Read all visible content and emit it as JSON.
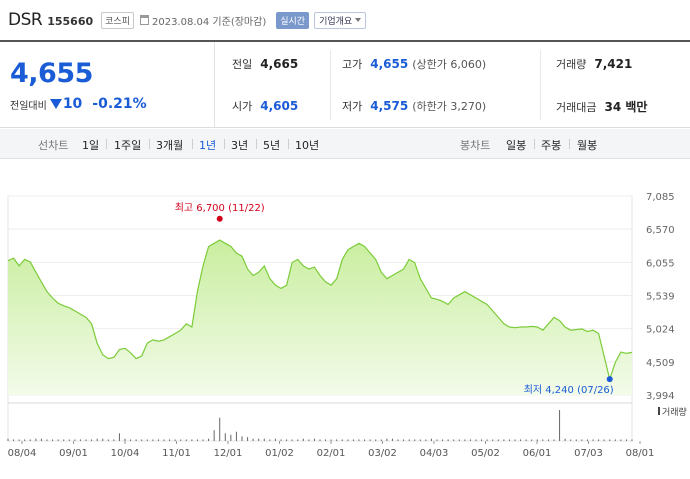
{
  "header": {
    "name": "DSR",
    "code": "155660",
    "market": "코스피",
    "date": "2023.08.04 기준(장마감)",
    "live": "실시간",
    "company": "기업개요",
    "icons": {
      "calendar": "calendar-icon",
      "dropdown": "chevron-down-icon"
    }
  },
  "quote": {
    "price": "4,655",
    "change_label": "전일대비",
    "change_value": "10",
    "change_pct": "-0.21%",
    "direction": "down",
    "prev_label": "전일",
    "prev_value": "4,665",
    "high_label": "고가",
    "high_value": "4,655",
    "upper_limit": "(상한가 6,060)",
    "volume_label": "거래량",
    "volume_value": "7,421",
    "open_label": "시가",
    "open_value": "4,605",
    "low_label": "저가",
    "low_value": "4,575",
    "lower_limit": "(하한가 3,270)",
    "amount_label": "거래대금",
    "amount_value": "34 백만"
  },
  "periods": {
    "line_label": "선차트",
    "line_items": [
      "1일",
      "1주일",
      "3개월",
      "1년",
      "3년",
      "5년",
      "10년"
    ],
    "active": "1년",
    "candle_label": "봉차트",
    "candle_items": [
      "일봉",
      "주봉",
      "월봉"
    ]
  },
  "colors": {
    "down": "#1a5bd6",
    "up": "#d0021b",
    "line": "#7ccc3a",
    "area": "#dff3c8"
  },
  "chart_data": {
    "type": "area",
    "y_ticks": [
      "7,085",
      "6,570",
      "6,055",
      "5,539",
      "5,024",
      "4,509",
      "3,994"
    ],
    "ylim": [
      3994,
      7085
    ],
    "x_ticks": [
      "08/04",
      "09/01",
      "10/04",
      "11/01",
      "12/01",
      "01/02",
      "02/01",
      "03/02",
      "04/03",
      "05/02",
      "06/01",
      "07/03",
      "08/01"
    ],
    "max_label": "최고 6,700 (11/22)",
    "max_value": 6700,
    "min_label": "최저 4,240 (07/26)",
    "min_value": 4240,
    "volume_label": "거래량",
    "series": [
      {
        "values": [
          6080,
          6120,
          6000,
          6100,
          6060,
          5900,
          5750,
          5600,
          5500,
          5420,
          5380,
          5350,
          5300,
          5250,
          5200,
          5100,
          4800,
          4620,
          4560,
          4580,
          4700,
          4720,
          4650,
          4560,
          4600,
          4800,
          4850,
          4830,
          4850,
          4900,
          4950,
          5000,
          5100,
          5050,
          5600,
          6000,
          6300,
          6350,
          6400,
          6350,
          6300,
          6200,
          6150,
          5950,
          5850,
          5900,
          6000,
          5800,
          5700,
          5650,
          5700,
          6050,
          6100,
          6000,
          5950,
          5980,
          5850,
          5750,
          5700,
          5800,
          6100,
          6250,
          6300,
          6350,
          6300,
          6200,
          6100,
          5900,
          5800,
          5850,
          5900,
          5950,
          6100,
          6050,
          5800,
          5650,
          5500,
          5480,
          5450,
          5400,
          5500,
          5550,
          5600,
          5550,
          5500,
          5450,
          5400,
          5300,
          5200,
          5100,
          5050,
          5040,
          5050,
          5050,
          5060,
          5050,
          5000,
          5100,
          5200,
          5150,
          5050,
          5000,
          5010,
          5020,
          4980,
          5000,
          4950,
          4600,
          4240,
          4500,
          4660,
          4640,
          4655
        ]
      }
    ],
    "volume": [
      3,
      2,
      2,
      2,
      2,
      3,
      3,
      2,
      2,
      2,
      2,
      2,
      2,
      2,
      2,
      2,
      3,
      3,
      2,
      2,
      10,
      3,
      2,
      2,
      2,
      2,
      2,
      2,
      2,
      2,
      2,
      2,
      2,
      2,
      2,
      2,
      3,
      14,
      30,
      10,
      8,
      12,
      6,
      5,
      3,
      3,
      3,
      2,
      3,
      2,
      2,
      2,
      2,
      3,
      2,
      3,
      2,
      2,
      2,
      2,
      2,
      2,
      2,
      2,
      2,
      2,
      2,
      2,
      3,
      3,
      2,
      2,
      2,
      2,
      2,
      2,
      3,
      2,
      2,
      2,
      2,
      2,
      2,
      2,
      2,
      2,
      2,
      2,
      2,
      2,
      2,
      2,
      2,
      2,
      2,
      2,
      2,
      2,
      2,
      40,
      3,
      2,
      2,
      2,
      2,
      2,
      2,
      2,
      2,
      2,
      2,
      2,
      2
    ]
  }
}
